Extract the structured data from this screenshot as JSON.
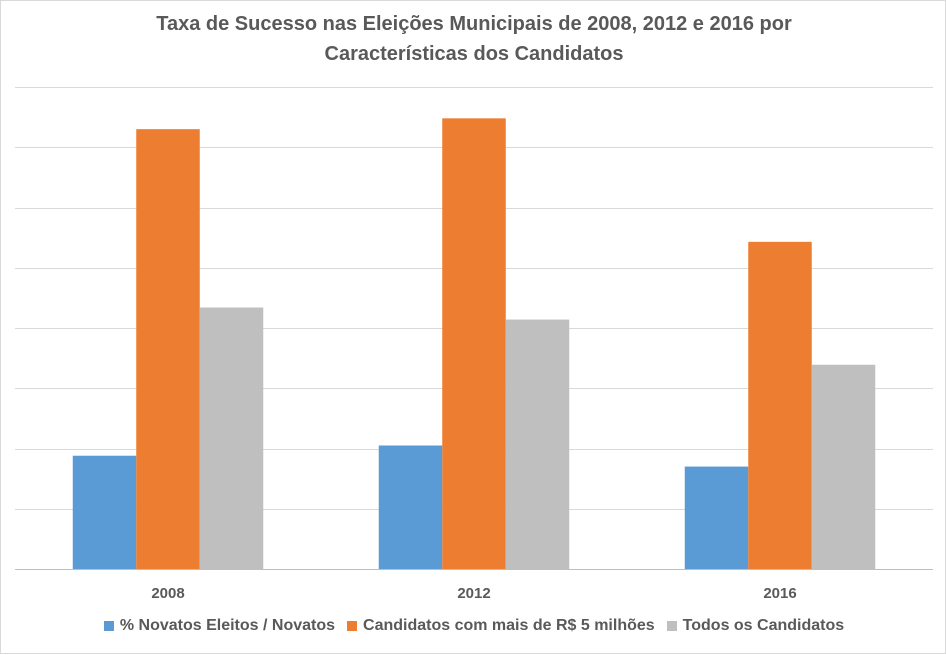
{
  "chart_data": {
    "type": "bar",
    "title_line1": "Taxa de Sucesso nas Eleições Municipais de 2008, 2012 e 2016 por",
    "title_line2": "Características dos Candidatos",
    "categories": [
      "2008",
      "2012",
      "2016"
    ],
    "series": [
      {
        "name": "% Novatos Eleitos / Novatos",
        "color": "#5b9bd5",
        "values": [
          0.188,
          0.205,
          0.17
        ]
      },
      {
        "name": "Candidatos com mais de R$ 5 milhões",
        "color": "#ed7d31",
        "values": [
          0.73,
          0.748,
          0.543
        ]
      },
      {
        "name": "Todos os Candidatos",
        "color": "#bfbfbf",
        "values": [
          0.434,
          0.414,
          0.339
        ]
      }
    ],
    "ylim": [
      0,
      0.8
    ],
    "grid": true,
    "legend": "bottom",
    "xlabel": "",
    "ylabel": ""
  }
}
